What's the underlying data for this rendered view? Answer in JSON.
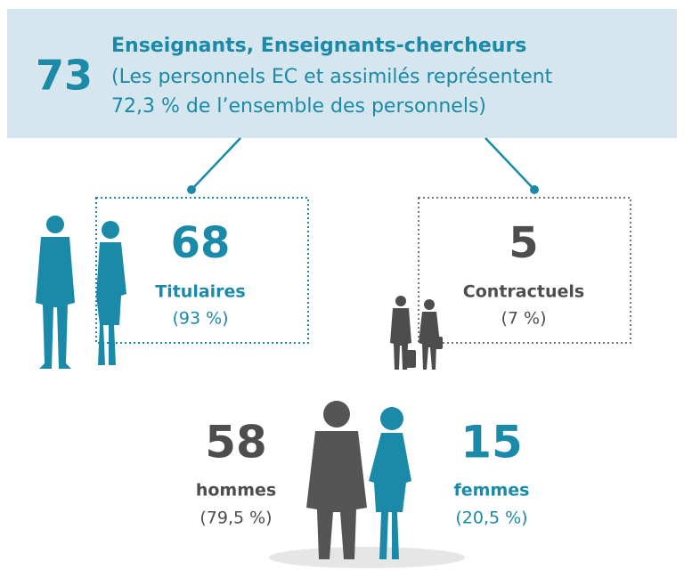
{
  "header": {
    "total": 73,
    "title": "Enseignants, Enseignants-chercheurs",
    "lines": [
      "(Les personnels EC et assimilés représentent",
      "72,3 % de l’ensemble des personnels)"
    ]
  },
  "boxes": [
    {
      "count": 68,
      "label": "Titulaires",
      "share": "(93 %)"
    },
    {
      "count": 5,
      "label": "Contractuels",
      "share": "(7 %)"
    }
  ],
  "gender": [
    {
      "count": 58,
      "label": "hommes",
      "share": "(79,5 %)"
    },
    {
      "count": 15,
      "label": "femmes",
      "share": "(20,5 %)"
    }
  ]
}
